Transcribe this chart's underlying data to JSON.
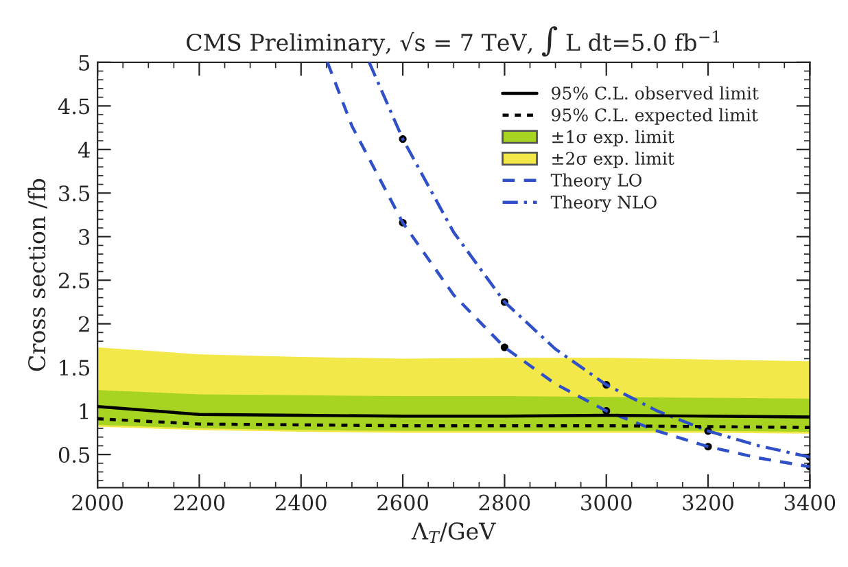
{
  "chart_data": {
    "type": "line",
    "title": "CMS Preliminary, √s = 7 TeV, ∫ L dt=5.0 fb$^{−1}$",
    "xlabel": "Λ$_{T}$/GeV",
    "ylabel": "Cross section /fb",
    "xlim": [
      2000,
      3400
    ],
    "xticks": [
      2000,
      2200,
      2400,
      2600,
      2800,
      3000,
      3200,
      3400
    ],
    "ylim": [
      0.12,
      5
    ],
    "yticks": [
      0.5,
      1,
      1.5,
      2,
      2.5,
      3,
      3.5,
      4,
      4.5,
      5
    ],
    "grid": false,
    "legend": "top right",
    "series": [
      {
        "name": "95% C.L. observed limit",
        "type": "line",
        "line_style": "solid",
        "color": "#000000",
        "x": [
          2000,
          2200,
          2400,
          2600,
          2800,
          3000,
          3200,
          3400
        ],
        "values": [
          1.05,
          0.96,
          0.95,
          0.94,
          0.94,
          0.95,
          0.94,
          0.93
        ]
      },
      {
        "name": "95% C.L. expected limit",
        "type": "line",
        "line_style": "dotted",
        "color": "#000000",
        "x": [
          2000,
          2200,
          2400,
          2600,
          2800,
          3000,
          3200,
          3400
        ],
        "values": [
          0.91,
          0.85,
          0.84,
          0.83,
          0.83,
          0.83,
          0.82,
          0.81
        ]
      },
      {
        "name": "±1σ exp. limit",
        "type": "line",
        "color": "#a6d421",
        "x": [
          2000,
          2200,
          2400,
          2600,
          2800,
          3000,
          3200,
          3400
        ],
        "values": [
          null,
          null,
          null,
          null,
          null,
          null,
          null,
          null
        ],
        "lower": [
          0.84,
          0.8,
          0.78,
          0.77,
          0.77,
          0.77,
          0.77,
          0.76
        ],
        "upper": [
          1.24,
          1.19,
          1.18,
          1.17,
          1.17,
          1.16,
          1.15,
          1.14
        ]
      },
      {
        "name": "±2σ exp. limit",
        "type": "line",
        "color": "#f3e84a",
        "x": [
          2000,
          2200,
          2400,
          2600,
          2800,
          3000,
          3200,
          3400
        ],
        "values": [
          null,
          null,
          null,
          null,
          null,
          null,
          null,
          null
        ],
        "lower": [
          0.82,
          0.78,
          0.76,
          0.75,
          0.75,
          0.75,
          0.75,
          0.74
        ],
        "upper": [
          1.73,
          1.65,
          1.62,
          1.6,
          1.61,
          1.61,
          1.59,
          1.57
        ]
      },
      {
        "name": "Theory LO",
        "type": "line",
        "line_style": "dashed",
        "color": "#3050c8",
        "x": [
          2452,
          2500,
          2600,
          2700,
          2800,
          2900,
          3000,
          3100,
          3200,
          3300,
          3400
        ],
        "values": [
          5.0,
          4.27,
          3.16,
          2.33,
          1.73,
          1.31,
          1.0,
          0.77,
          0.59,
          0.46,
          0.36
        ]
      },
      {
        "name": "Theory NLO",
        "type": "line",
        "line_style": "dashdot",
        "color": "#3050c8",
        "x": [
          2534,
          2600,
          2700,
          2800,
          2900,
          3000,
          3100,
          3200,
          3300,
          3400
        ],
        "values": [
          5.0,
          4.12,
          3.05,
          2.25,
          1.71,
          1.3,
          1.0,
          0.77,
          0.6,
          0.47
        ]
      },
      {
        "type": "scatter",
        "marker": "circle",
        "color": "#000000",
        "x": [
          2600,
          2800,
          3000,
          3200,
          3400,
          2600,
          2800,
          3000,
          3200,
          3400
        ],
        "values": [
          3.16,
          1.73,
          1.0,
          0.59,
          0.36,
          4.12,
          2.25,
          1.3,
          0.77,
          0.47
        ]
      }
    ]
  }
}
